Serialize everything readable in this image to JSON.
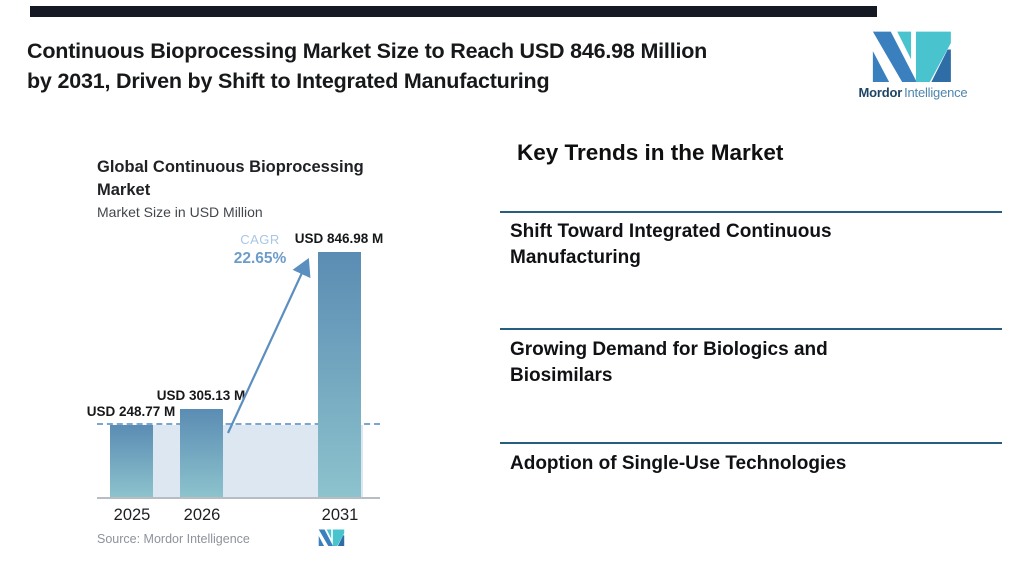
{
  "header": {
    "title_line1": "Continuous Bioprocessing Market Size to Reach USD 846.98 Million",
    "title_line2": "by 2031, Driven by Shift to Integrated Manufacturing"
  },
  "brand": {
    "name_bold": "Mordor",
    "name_light": "Intelligence"
  },
  "chart_data": {
    "type": "bar",
    "title": "Global Continuous Bioprocessing Market",
    "subtitle": "Market Size in USD Million",
    "categories": [
      "2025",
      "2026",
      "2031"
    ],
    "values": [
      248.77,
      305.13,
      846.98
    ],
    "bar_labels": [
      "USD 248.77 M",
      "USD 305.13 M",
      "USD 846.98 M"
    ],
    "cagr_label": "CAGR",
    "cagr_value": "22.65%",
    "ylim": [
      0,
      880
    ],
    "grid": false,
    "legend": false,
    "reference_line": 248.77,
    "source": "Source: Mordor Intelligence",
    "colors": {
      "bar_top": "#5b8cb3",
      "bar_bottom": "#8cc3cd",
      "reference_band": "#dce7f2",
      "dashed_line": "#7ca6ce",
      "arrow": "#5b8fc0",
      "cagr_label": "#a9c6e3",
      "cagr_value": "#6d9cc9"
    }
  },
  "trends": {
    "heading": "Key Trends in the Market",
    "items": [
      "Shift Toward Integrated Continuous Manufacturing",
      "Growing Demand for Biologics and Biosimilars",
      "Adoption of Single-Use Technologies"
    ]
  },
  "colors": {
    "top_bar": "#141924",
    "divider": "#265e80",
    "brand_blue": "#3a80bf",
    "brand_teal": "#49c4cf",
    "brand_dark_blue": "#2e6da6",
    "title_text": "#17181a"
  }
}
